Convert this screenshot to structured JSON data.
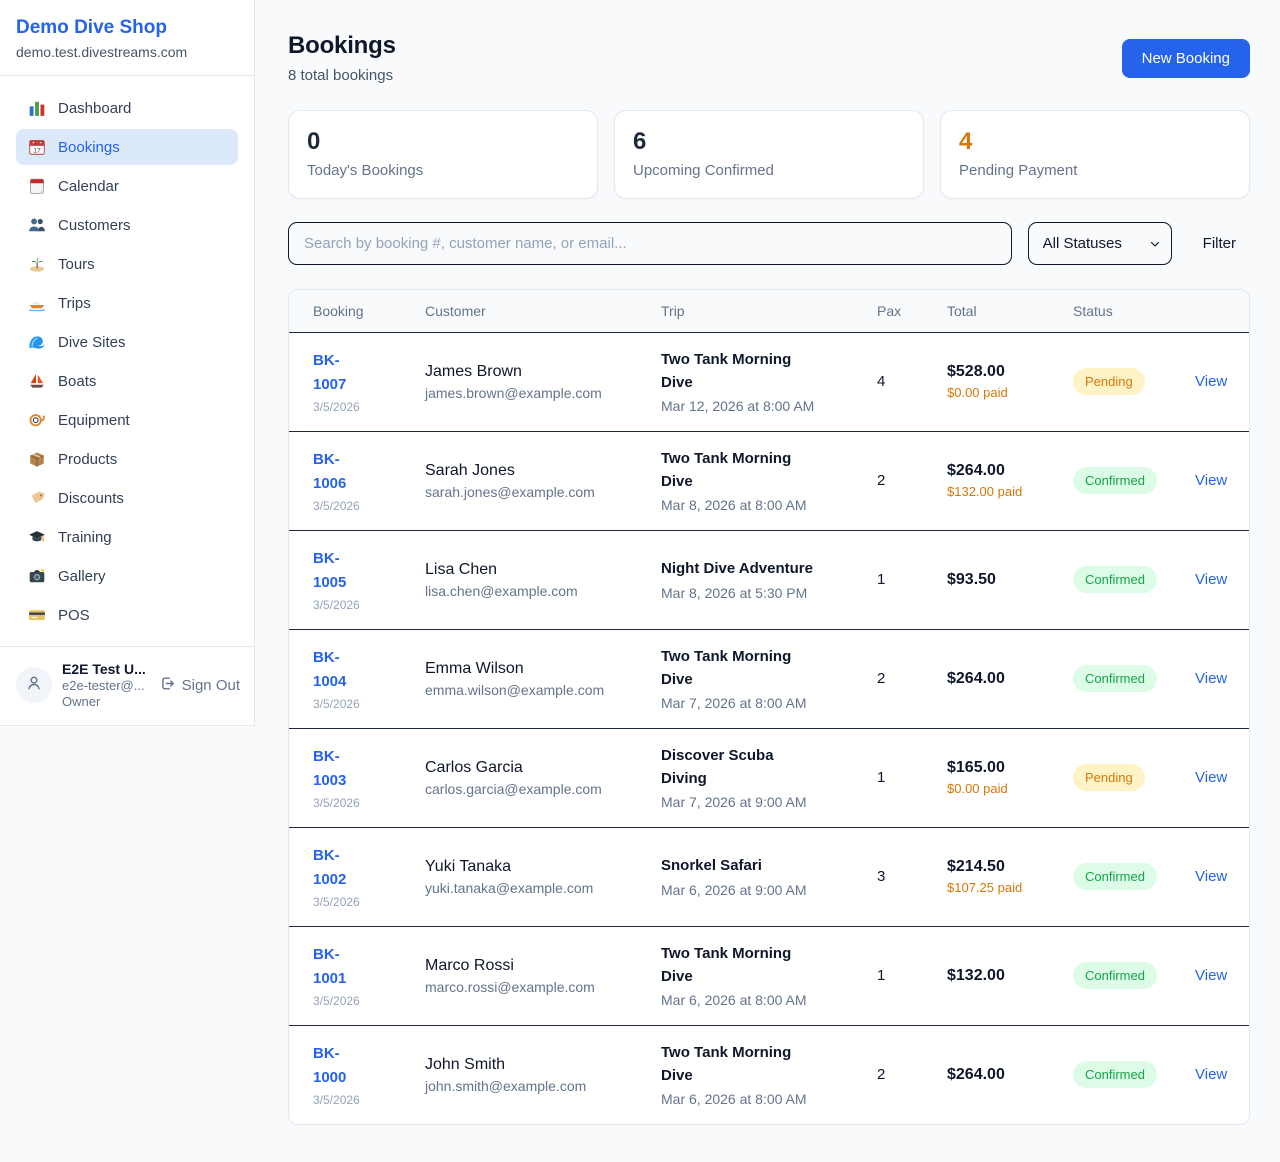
{
  "sidebar": {
    "brand": {
      "name": "Demo Dive Shop",
      "domain": "demo.test.divestreams.com"
    },
    "items": [
      {
        "label": "Dashboard",
        "icon": "bar-chart-icon",
        "active": false
      },
      {
        "label": "Bookings",
        "icon": "calendar-date-icon",
        "active": true
      },
      {
        "label": "Calendar",
        "icon": "calendar-pad-icon",
        "active": false
      },
      {
        "label": "Customers",
        "icon": "users-icon",
        "active": false
      },
      {
        "label": "Tours",
        "icon": "island-icon",
        "active": false
      },
      {
        "label": "Trips",
        "icon": "motorboat-icon",
        "active": false
      },
      {
        "label": "Dive Sites",
        "icon": "wave-icon",
        "active": false
      },
      {
        "label": "Boats",
        "icon": "sailboat-icon",
        "active": false
      },
      {
        "label": "Equipment",
        "icon": "dive-mask-icon",
        "active": false
      },
      {
        "label": "Products",
        "icon": "package-icon",
        "active": false
      },
      {
        "label": "Discounts",
        "icon": "tag-icon",
        "active": false
      },
      {
        "label": "Training",
        "icon": "grad-cap-icon",
        "active": false
      },
      {
        "label": "Gallery",
        "icon": "camera-icon",
        "active": false
      },
      {
        "label": "POS",
        "icon": "credit-card-icon",
        "active": false
      }
    ],
    "user": {
      "name": "E2E Test U...",
      "email": "e2e-tester@...",
      "role": "Owner",
      "sign_out_label": "Sign Out"
    }
  },
  "header": {
    "title": "Bookings",
    "subtitle": "8 total bookings",
    "new_booking_label": "New Booking"
  },
  "stats": [
    {
      "value": "0",
      "label": "Today's Bookings",
      "color": "#1e293b"
    },
    {
      "value": "6",
      "label": "Upcoming Confirmed",
      "color": "#1e293b"
    },
    {
      "value": "4",
      "label": "Pending Payment",
      "color": "#d97706"
    }
  ],
  "filters": {
    "search_placeholder": "Search by booking #, customer name, or email...",
    "status_selected": "All Statuses",
    "filter_label": "Filter"
  },
  "table": {
    "columns": [
      "Booking",
      "Customer",
      "Trip",
      "Pax",
      "Total",
      "Status"
    ],
    "view_label": "View",
    "rows": [
      {
        "id": "BK-1007",
        "date": "3/5/2026",
        "customer": "James Brown",
        "email": "james.brown@example.com",
        "trip": "Two Tank Morning Dive",
        "trip_date": "Mar 12, 2026 at 8:00 AM",
        "pax": "4",
        "total": "$528.00",
        "paid": "$0.00 paid",
        "status": "Pending"
      },
      {
        "id": "BK-1006",
        "date": "3/5/2026",
        "customer": "Sarah Jones",
        "email": "sarah.jones@example.com",
        "trip": "Two Tank Morning Dive",
        "trip_date": "Mar 8, 2026 at 8:00 AM",
        "pax": "2",
        "total": "$264.00",
        "paid": "$132.00 paid",
        "status": "Confirmed"
      },
      {
        "id": "BK-1005",
        "date": "3/5/2026",
        "customer": "Lisa Chen",
        "email": "lisa.chen@example.com",
        "trip": "Night Dive Adventure",
        "trip_date": "Mar 8, 2026 at 5:30 PM",
        "pax": "1",
        "total": "$93.50",
        "paid": null,
        "status": "Confirmed"
      },
      {
        "id": "BK-1004",
        "date": "3/5/2026",
        "customer": "Emma Wilson",
        "email": "emma.wilson@example.com",
        "trip": "Two Tank Morning Dive",
        "trip_date": "Mar 7, 2026 at 8:00 AM",
        "pax": "2",
        "total": "$264.00",
        "paid": null,
        "status": "Confirmed"
      },
      {
        "id": "BK-1003",
        "date": "3/5/2026",
        "customer": "Carlos Garcia",
        "email": "carlos.garcia@example.com",
        "trip": "Discover Scuba Diving",
        "trip_date": "Mar 7, 2026 at 9:00 AM",
        "pax": "1",
        "total": "$165.00",
        "paid": "$0.00 paid",
        "status": "Pending"
      },
      {
        "id": "BK-1002",
        "date": "3/5/2026",
        "customer": "Yuki Tanaka",
        "email": "yuki.tanaka@example.com",
        "trip": "Snorkel Safari",
        "trip_date": "Mar 6, 2026 at 9:00 AM",
        "pax": "3",
        "total": "$214.50",
        "paid": "$107.25 paid",
        "status": "Confirmed"
      },
      {
        "id": "BK-1001",
        "date": "3/5/2026",
        "customer": "Marco Rossi",
        "email": "marco.rossi@example.com",
        "trip": "Two Tank Morning Dive",
        "trip_date": "Mar 6, 2026 at 8:00 AM",
        "pax": "1",
        "total": "$132.00",
        "paid": null,
        "status": "Confirmed"
      },
      {
        "id": "BK-1000",
        "date": "3/5/2026",
        "customer": "John Smith",
        "email": "john.smith@example.com",
        "trip": "Two Tank Morning Dive",
        "trip_date": "Mar 6, 2026 at 8:00 AM",
        "pax": "2",
        "total": "$264.00",
        "paid": null,
        "status": "Confirmed"
      }
    ]
  },
  "colors": {
    "accent": "#2563eb",
    "active_nav_bg": "#dbe9fb",
    "pending_text": "#d97706",
    "pending_bg": "#fef3c7",
    "confirmed_text": "#16a34a",
    "confirmed_bg": "#dcfce7",
    "page_bg": "#f8fafc"
  }
}
